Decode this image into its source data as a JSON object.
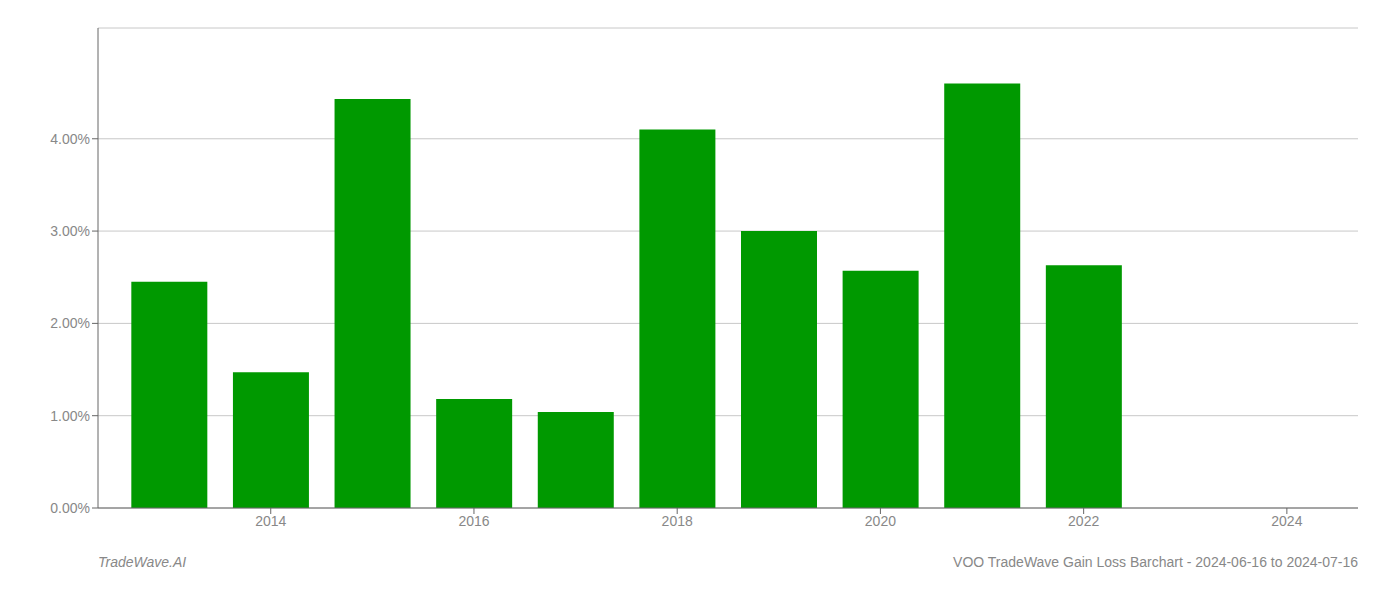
{
  "chart_data": {
    "type": "bar",
    "title": "VOO TradeWave Gain Loss Barchart - 2024-06-16 to 2024-07-16",
    "annotations": [
      "TradeWave.AI"
    ],
    "x": [
      2013,
      2014,
      2015,
      2016,
      2017,
      2018,
      2019,
      2020,
      2021,
      2022
    ],
    "values": [
      0.0245,
      0.0147,
      0.0443,
      0.0118,
      0.0104,
      0.041,
      0.03,
      0.0257,
      0.046,
      0.0263
    ],
    "color": "#009900",
    "xlim": [
      2012.3,
      2024.7
    ],
    "xticks": [
      2014,
      2016,
      2018,
      2020,
      2022,
      2024
    ],
    "ylim": [
      0,
      0.052
    ],
    "yticks": [
      {
        "value": 0.0,
        "label": "0.00%"
      },
      {
        "value": 0.01,
        "label": "1.00%"
      },
      {
        "value": 0.02,
        "label": "2.00%"
      },
      {
        "value": 0.03,
        "label": "3.00%"
      },
      {
        "value": 0.04,
        "label": "4.00%"
      }
    ],
    "grid": true
  }
}
